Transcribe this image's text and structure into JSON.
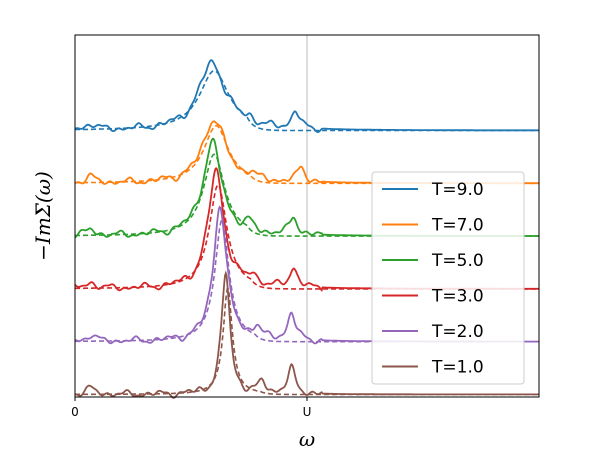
{
  "chart_data": {
    "type": "line",
    "title": "",
    "xlabel": "ω",
    "ylabel": "−ImΣ(ω)",
    "xlim": [
      -4.0,
      8.0
    ],
    "x_ticks": [
      {
        "value": -4.0,
        "label": "0"
      },
      {
        "value": 2.0,
        "label": "U"
      }
    ],
    "y_ticks": [],
    "vertical_reference_line": {
      "x": 2.0,
      "color": "#bbbbbb"
    },
    "legend": {
      "position": "lower-right"
    },
    "curve_style": {
      "solid": "full self-energy",
      "dashed": "approximation"
    },
    "series": [
      {
        "name": "T=9.0",
        "color": "#1f77b4",
        "offset": 5.3,
        "peak_x": -0.45,
        "peak_height": 1.35,
        "peak_width": 0.42,
        "satellite_x": 1.7,
        "satellite_height": 0.35
      },
      {
        "name": "T=7.0",
        "color": "#ff7f0e",
        "offset": 4.25,
        "peak_x": -0.4,
        "peak_height": 1.3,
        "peak_width": 0.35,
        "satellite_x": 1.85,
        "satellite_height": 0.3
      },
      {
        "name": "T=5.0",
        "color": "#2ca02c",
        "offset": 3.2,
        "peak_x": -0.45,
        "peak_height": 1.85,
        "peak_width": 0.3,
        "satellite_x": 1.65,
        "satellite_height": 0.35
      },
      {
        "name": "T=3.0",
        "color": "#d62728",
        "offset": 2.15,
        "peak_x": -0.35,
        "peak_height": 2.35,
        "peak_width": 0.25,
        "satellite_x": 1.65,
        "satellite_height": 0.4
      },
      {
        "name": "T=2.0",
        "color": "#9467bd",
        "offset": 1.1,
        "peak_x": -0.25,
        "peak_height": 2.75,
        "peak_width": 0.2,
        "satellite_x": 1.6,
        "satellite_height": 0.55
      },
      {
        "name": "T=1.0",
        "color": "#8c564b",
        "offset": 0.05,
        "peak_x": -0.1,
        "peak_height": 2.4,
        "peak_width": 0.13,
        "satellite_x": 1.6,
        "satellite_height": 0.5
      }
    ]
  }
}
